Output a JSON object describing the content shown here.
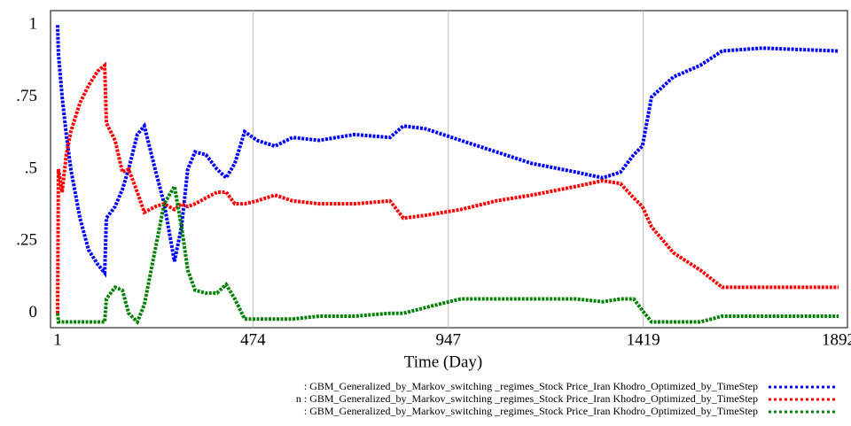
{
  "chart_data": {
    "type": "line",
    "x_label": "Time (Day)",
    "xlim": [
      1,
      1892
    ],
    "xticks": [
      1,
      474,
      947,
      1419,
      1892
    ],
    "ylim": [
      -0.05,
      1.05
    ],
    "yticks": [
      {
        "value": 1,
        "label": "1"
      },
      {
        "value": 0.75,
        "label": ".75"
      },
      {
        "value": 0.5,
        "label": ".5"
      },
      {
        "value": 0.25,
        "label": ".25"
      },
      {
        "value": 0,
        "label": "0"
      }
    ],
    "grid": true,
    "x": [
      1,
      3,
      12,
      22,
      33,
      55,
      76,
      98,
      115,
      119,
      140,
      158,
      173,
      194,
      211,
      237,
      259,
      284,
      301,
      316,
      334,
      360,
      387,
      409,
      430,
      454,
      484,
      527,
      570,
      634,
      720,
      806,
      838,
      892,
      977,
      1063,
      1149,
      1256,
      1321,
      1364,
      1396,
      1417,
      1439,
      1492,
      1557,
      1610,
      1707,
      1892
    ],
    "series": [
      {
        "name": ": GBM_Generalized_by_Markov_switching _regimes_Stock Price_Iran Khodro_Optimized_by_TimeStep",
        "color": "#0000ff",
        "values": [
          1.0,
          0.9,
          0.75,
          0.62,
          0.5,
          0.33,
          0.22,
          0.17,
          0.14,
          0.33,
          0.37,
          0.43,
          0.5,
          0.62,
          0.65,
          0.5,
          0.38,
          0.18,
          0.3,
          0.5,
          0.56,
          0.55,
          0.5,
          0.47,
          0.52,
          0.63,
          0.6,
          0.58,
          0.61,
          0.6,
          0.62,
          0.61,
          0.65,
          0.64,
          0.6,
          0.56,
          0.52,
          0.49,
          0.47,
          0.49,
          0.55,
          0.58,
          0.75,
          0.82,
          0.86,
          0.91,
          0.92,
          0.91
        ]
      },
      {
        "name": "n : GBM_Generalized_by_Markov_switching _regimes_Stock Price_Iran Khodro_Optimized_by_TimeStep",
        "color": "#ff0000",
        "values": [
          0,
          0.5,
          0.42,
          0.55,
          0.63,
          0.73,
          0.79,
          0.84,
          0.86,
          0.66,
          0.6,
          0.49,
          0.5,
          0.42,
          0.35,
          0.37,
          0.38,
          0.36,
          0.38,
          0.37,
          0.38,
          0.4,
          0.42,
          0.42,
          0.38,
          0.38,
          0.39,
          0.41,
          0.39,
          0.38,
          0.38,
          0.39,
          0.33,
          0.34,
          0.36,
          0.39,
          0.41,
          0.44,
          0.46,
          0.45,
          0.4,
          0.37,
          0.3,
          0.21,
          0.15,
          0.09,
          0.09,
          0.09
        ]
      },
      {
        "name": ": GBM_Generalized_by_Markov_switching _regimes_Stock Price_Iran Khodro_Optimized_by_TimeStep",
        "color": "#008000",
        "values": [
          0,
          -0.03,
          -0.03,
          -0.03,
          -0.03,
          -0.03,
          -0.03,
          -0.03,
          -0.03,
          0.05,
          0.09,
          0.08,
          0,
          -0.03,
          0.03,
          0.22,
          0.38,
          0.44,
          0.3,
          0.15,
          0.08,
          0.07,
          0.07,
          0.1,
          0.05,
          -0.02,
          -0.02,
          -0.02,
          -0.02,
          -0.01,
          -0.01,
          0,
          0,
          0.02,
          0.05,
          0.05,
          0.05,
          0.05,
          0.04,
          0.05,
          0.05,
          0.01,
          -0.03,
          -0.03,
          -0.03,
          -0.01,
          -0.01,
          -0.01
        ]
      }
    ]
  }
}
